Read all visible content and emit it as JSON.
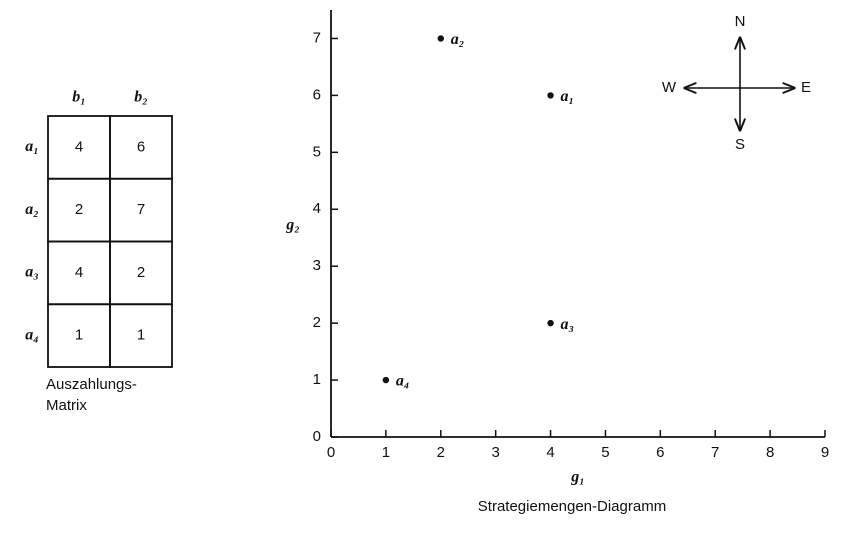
{
  "matrix": {
    "col_headers": [
      "b₁",
      "b₂"
    ],
    "row_headers": [
      "a₁",
      "a₂",
      "a₃",
      "a₄"
    ],
    "rows": [
      [
        4,
        6
      ],
      [
        2,
        7
      ],
      [
        4,
        2
      ],
      [
        1,
        1
      ]
    ],
    "caption": [
      "Auszahlungs-",
      "Matrix"
    ]
  },
  "compass": {
    "north": "N",
    "east": "E",
    "south": "S",
    "west": "W"
  },
  "chart_data": {
    "type": "scatter",
    "caption": "Strategiemengen-Diagramm",
    "x_label": "g₁",
    "y_label": "g₂",
    "x": [
      4,
      2,
      4,
      1
    ],
    "values": [
      6,
      7,
      2,
      1
    ],
    "point_labels": [
      "a₁",
      "a₂",
      "a₃",
      "a₄"
    ],
    "color": "#111111",
    "xlim": [
      0,
      9
    ],
    "ylim": [
      0,
      7.5
    ],
    "xticks": [
      0,
      1,
      2,
      3,
      4,
      5,
      6,
      7,
      8,
      9
    ],
    "yticks": [
      0,
      1,
      2,
      3,
      4,
      5,
      6,
      7
    ]
  }
}
